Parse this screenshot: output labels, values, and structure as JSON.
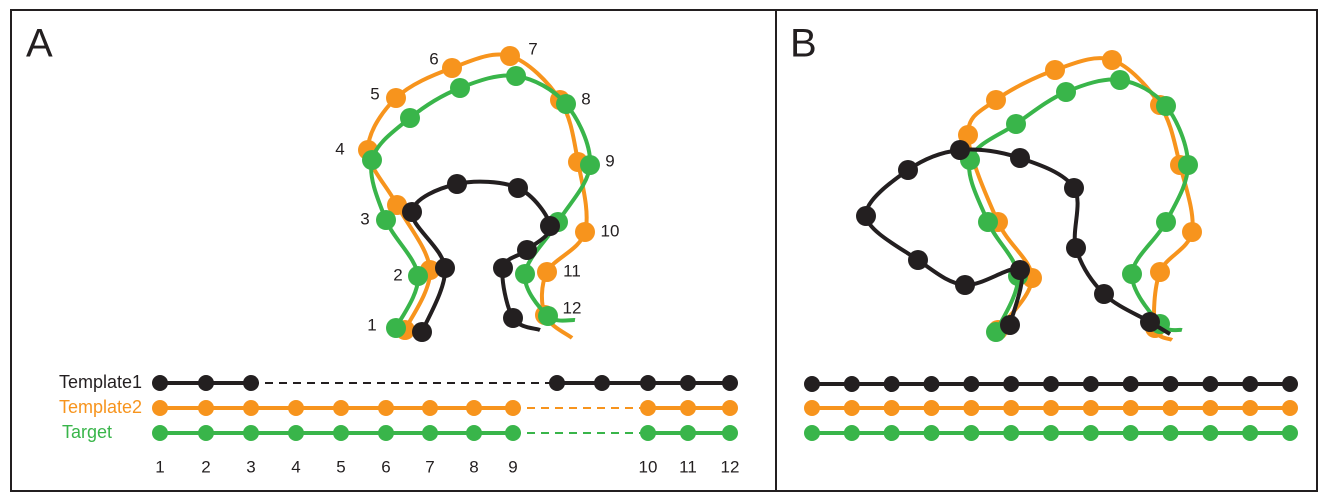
{
  "panels": [
    {
      "label": "A"
    },
    {
      "label": "B"
    }
  ],
  "structure_numbers": [
    "1",
    "2",
    "3",
    "4",
    "5",
    "6",
    "7",
    "8",
    "9",
    "10",
    "11",
    "12"
  ],
  "rows": [
    "Template1",
    "Template2",
    "Target"
  ],
  "positions": [
    "1",
    "2",
    "3",
    "4",
    "5",
    "6",
    "7",
    "8",
    "9",
    "10",
    "11",
    "12"
  ]
}
